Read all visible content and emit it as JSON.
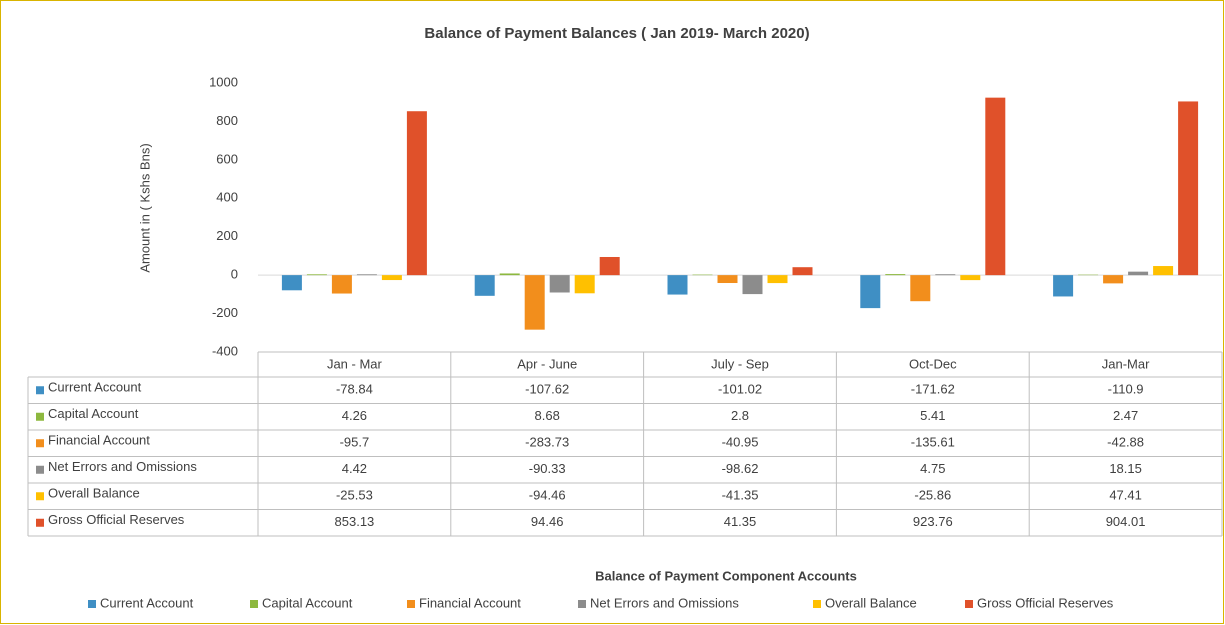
{
  "chart_data": {
    "type": "bar",
    "title": "Balance of Payment Balances ( Jan 2019- March 2020)",
    "y_label": "Amount in ( Kshs Bns)",
    "x_label": "Balance of Payment Component Accounts",
    "categories": [
      "Jan - Mar",
      "Apr - June",
      "July - Sep",
      "Oct-Dec",
      "Jan-Mar"
    ],
    "series": [
      {
        "name": "Current Account",
        "color": "#3f8fc4",
        "values": [
          -78.84,
          -107.62,
          -101.02,
          -171.62,
          -110.9
        ]
      },
      {
        "name": "Capital Account",
        "color": "#8db83f",
        "values": [
          4.26,
          8.68,
          2.8,
          5.41,
          2.47
        ]
      },
      {
        "name": "Financial Account",
        "color": "#f28e1c",
        "values": [
          -95.7,
          -283.73,
          -40.95,
          -135.61,
          -42.88
        ]
      },
      {
        "name": "Net Errors and Omissions",
        "color": "#8c8c8c",
        "values": [
          4.42,
          -90.33,
          -98.62,
          4.75,
          18.15
        ]
      },
      {
        "name": "Overall Balance",
        "color": "#ffc000",
        "values": [
          -25.53,
          -94.46,
          -41.35,
          -25.86,
          47.41
        ]
      },
      {
        "name": "Gross Official Reserves",
        "color": "#e0512a",
        "values": [
          853.13,
          94.46,
          41.35,
          923.76,
          904.01
        ]
      }
    ],
    "ylim": [
      -400,
      1000
    ],
    "yticks": [
      -400,
      -200,
      0,
      200,
      400,
      600,
      800,
      1000
    ],
    "grid": false,
    "legend": "bottom"
  }
}
